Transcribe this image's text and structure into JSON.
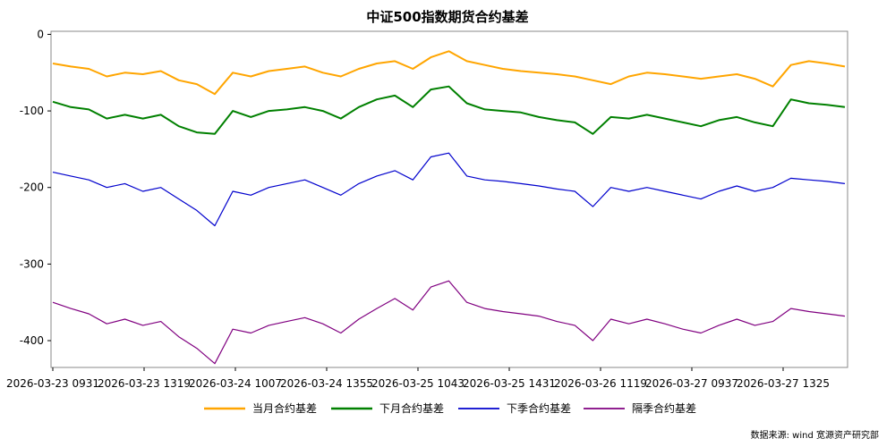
{
  "chart_data": {
    "type": "line",
    "title": "中证500指数期货合约基差",
    "xlabel": "",
    "ylabel": "",
    "ylim": [
      -435,
      4
    ],
    "y_ticks": [
      0,
      -100,
      -200,
      -300,
      -400
    ],
    "y_tick_labels": [
      "0",
      "-100",
      "-200",
      "-300",
      "-400"
    ],
    "x_tick_labels": [
      "2026-03-23 0931",
      "2026-03-23 1319",
      "2026-03-24 1007",
      "2026-03-24 1355",
      "2026-03-25 1043",
      "2026-03-25 1431",
      "2026-03-26 1119",
      "2026-03-27 0937",
      "2026-03-27 1325"
    ],
    "x": [
      "2026-03-23 0931",
      "2026-03-23 1000",
      "2026-03-23 1030",
      "2026-03-23 1100",
      "2026-03-23 1130",
      "2026-03-23 1330",
      "2026-03-23 1400",
      "2026-03-23 1430",
      "2026-03-23 1500",
      "2026-03-24 0931",
      "2026-03-24 1000",
      "2026-03-24 1030",
      "2026-03-24 1100",
      "2026-03-24 1130",
      "2026-03-24 1330",
      "2026-03-24 1400",
      "2026-03-24 1430",
      "2026-03-24 1500",
      "2026-03-25 0931",
      "2026-03-25 1000",
      "2026-03-25 1030",
      "2026-03-25 1100",
      "2026-03-25 1130",
      "2026-03-25 1330",
      "2026-03-25 1400",
      "2026-03-25 1430",
      "2026-03-25 1500",
      "2026-03-26 0931",
      "2026-03-26 1000",
      "2026-03-26 1030",
      "2026-03-26 1100",
      "2026-03-26 1130",
      "2026-03-26 1330",
      "2026-03-26 1400",
      "2026-03-26 1430",
      "2026-03-26 1500",
      "2026-03-27 0931",
      "2026-03-27 1000",
      "2026-03-27 1030",
      "2026-03-27 1100",
      "2026-03-27 1130",
      "2026-03-27 1330",
      "2026-03-27 1400",
      "2026-03-27 1430",
      "2026-03-27 1500"
    ],
    "series": [
      {
        "name": "当月合约基差",
        "color": "#FFA500",
        "values": [
          -38,
          -42,
          -45,
          -55,
          -50,
          -52,
          -48,
          -60,
          -65,
          -78,
          -50,
          -55,
          -48,
          -45,
          -42,
          -50,
          -55,
          -45,
          -38,
          -35,
          -45,
          -30,
          -22,
          -35,
          -40,
          -45,
          -48,
          -50,
          -52,
          -55,
          -60,
          -65,
          -55,
          -50,
          -52,
          -55,
          -58,
          -55,
          -52,
          -58,
          -68,
          -40,
          -35,
          -38,
          -42
        ]
      },
      {
        "name": "下月合约基差",
        "color": "#008000",
        "values": [
          -88,
          -95,
          -98,
          -110,
          -105,
          -110,
          -105,
          -120,
          -128,
          -130,
          -100,
          -108,
          -100,
          -98,
          -95,
          -100,
          -110,
          -95,
          -85,
          -80,
          -95,
          -72,
          -68,
          -90,
          -98,
          -100,
          -102,
          -108,
          -112,
          -115,
          -130,
          -108,
          -110,
          -105,
          -110,
          -115,
          -120,
          -112,
          -108,
          -115,
          -120,
          -85,
          -90,
          -92,
          -95
        ]
      },
      {
        "name": "下季合约基差",
        "color": "#0000CD",
        "values": [
          -180,
          -185,
          -190,
          -200,
          -195,
          -205,
          -200,
          -215,
          -230,
          -250,
          -205,
          -210,
          -200,
          -195,
          -190,
          -200,
          -210,
          -195,
          -185,
          -178,
          -190,
          -160,
          -155,
          -185,
          -190,
          -192,
          -195,
          -198,
          -202,
          -205,
          -225,
          -200,
          -205,
          -200,
          -205,
          -210,
          -215,
          -205,
          -198,
          -205,
          -200,
          -188,
          -190,
          -192,
          -195
        ]
      },
      {
        "name": "隔季合约基差",
        "color": "#800080",
        "values": [
          -350,
          -358,
          -365,
          -378,
          -372,
          -380,
          -375,
          -395,
          -410,
          -430,
          -385,
          -390,
          -380,
          -375,
          -370,
          -378,
          -390,
          -372,
          -358,
          -345,
          -360,
          -330,
          -322,
          -350,
          -358,
          -362,
          -365,
          -368,
          -375,
          -380,
          -400,
          -372,
          -378,
          -372,
          -378,
          -385,
          -390,
          -380,
          -372,
          -380,
          -375,
          -358,
          -362,
          -365,
          -368
        ]
      }
    ],
    "legend_position": "bottom",
    "grid": false
  },
  "source_note": "数据来源:   wind  宽源资产研究部"
}
